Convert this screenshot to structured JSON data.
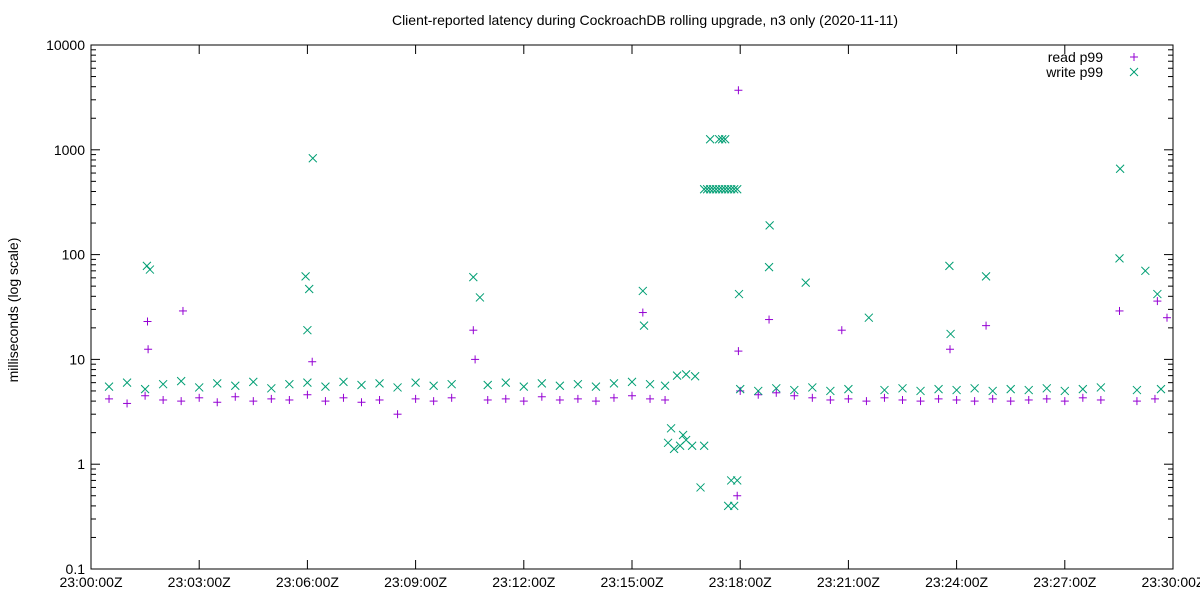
{
  "chart_data": {
    "type": "scatter",
    "title": "Client-reported latency during CockroachDB rolling upgrade, n3 only (2020-11-11)",
    "ylabel": "milliseconds (log scale)",
    "xlabel": "",
    "y_scale": "log",
    "ylim": [
      0.1,
      10000
    ],
    "xlim": [
      "23:00:00Z",
      "23:30:00Z"
    ],
    "y_ticks": [
      "0.1",
      "1",
      "10",
      "100",
      "1000",
      "10000"
    ],
    "x_ticks": [
      "23:00:00Z",
      "23:03:00Z",
      "23:06:00Z",
      "23:09:00Z",
      "23:12:00Z",
      "23:15:00Z",
      "23:18:00Z",
      "23:21:00Z",
      "23:24:00Z",
      "23:27:00Z",
      "23:30:00Z"
    ],
    "grid": false,
    "legend_position": "top-right",
    "colors": {
      "read": "#9400d3",
      "write": "#009e73"
    },
    "series": [
      {
        "name": "read p99",
        "marker": "plus",
        "points": [
          [
            "23:00:30Z",
            4.2
          ],
          [
            "23:01:00Z",
            3.8
          ],
          [
            "23:01:30Z",
            4.5
          ],
          [
            "23:01:34Z",
            23
          ],
          [
            "23:01:35Z",
            12.5
          ],
          [
            "23:02:00Z",
            4.1
          ],
          [
            "23:02:30Z",
            4.0
          ],
          [
            "23:02:33Z",
            29
          ],
          [
            "23:03:00Z",
            4.3
          ],
          [
            "23:03:30Z",
            3.9
          ],
          [
            "23:04:00Z",
            4.4
          ],
          [
            "23:04:30Z",
            4.0
          ],
          [
            "23:05:00Z",
            4.2
          ],
          [
            "23:05:30Z",
            4.1
          ],
          [
            "23:06:00Z",
            4.6
          ],
          [
            "23:06:08Z",
            9.5
          ],
          [
            "23:06:30Z",
            4.0
          ],
          [
            "23:07:00Z",
            4.3
          ],
          [
            "23:07:30Z",
            3.9
          ],
          [
            "23:08:00Z",
            4.1
          ],
          [
            "23:08:30Z",
            3.0
          ],
          [
            "23:09:00Z",
            4.2
          ],
          [
            "23:09:30Z",
            4.0
          ],
          [
            "23:10:00Z",
            4.3
          ],
          [
            "23:10:36Z",
            19
          ],
          [
            "23:10:39Z",
            10
          ],
          [
            "23:11:00Z",
            4.1
          ],
          [
            "23:11:30Z",
            4.2
          ],
          [
            "23:12:00Z",
            4.0
          ],
          [
            "23:12:30Z",
            4.4
          ],
          [
            "23:13:00Z",
            4.1
          ],
          [
            "23:13:30Z",
            4.2
          ],
          [
            "23:14:00Z",
            4.0
          ],
          [
            "23:14:30Z",
            4.3
          ],
          [
            "23:15:00Z",
            4.5
          ],
          [
            "23:15:18Z",
            28
          ],
          [
            "23:15:30Z",
            4.2
          ],
          [
            "23:15:55Z",
            4.1
          ],
          [
            "23:17:57Z",
            3700
          ],
          [
            "23:17:57Z",
            12
          ],
          [
            "23:17:55Z",
            0.5
          ],
          [
            "23:18:00Z",
            5.0
          ],
          [
            "23:18:30Z",
            4.6
          ],
          [
            "23:18:48Z",
            24
          ],
          [
            "23:19:00Z",
            4.8
          ],
          [
            "23:19:30Z",
            4.5
          ],
          [
            "23:20:00Z",
            4.3
          ],
          [
            "23:20:30Z",
            4.1
          ],
          [
            "23:20:49Z",
            19
          ],
          [
            "23:21:00Z",
            4.2
          ],
          [
            "23:21:30Z",
            4.0
          ],
          [
            "23:22:00Z",
            4.3
          ],
          [
            "23:22:30Z",
            4.1
          ],
          [
            "23:23:00Z",
            4.0
          ],
          [
            "23:23:30Z",
            4.2
          ],
          [
            "23:23:49Z",
            12.5
          ],
          [
            "23:24:00Z",
            4.1
          ],
          [
            "23:24:30Z",
            4.0
          ],
          [
            "23:24:49Z",
            21
          ],
          [
            "23:25:00Z",
            4.2
          ],
          [
            "23:25:30Z",
            4.0
          ],
          [
            "23:26:00Z",
            4.1
          ],
          [
            "23:26:30Z",
            4.2
          ],
          [
            "23:27:00Z",
            4.0
          ],
          [
            "23:27:30Z",
            4.3
          ],
          [
            "23:28:00Z",
            4.1
          ],
          [
            "23:28:31Z",
            29
          ],
          [
            "23:29:00Z",
            4.0
          ],
          [
            "23:29:30Z",
            4.2
          ],
          [
            "23:29:34Z",
            36
          ],
          [
            "23:29:50Z",
            25
          ]
        ]
      },
      {
        "name": "write p99",
        "marker": "cross",
        "points": [
          [
            "23:00:30Z",
            5.5
          ],
          [
            "23:01:00Z",
            6.0
          ],
          [
            "23:01:30Z",
            5.2
          ],
          [
            "23:01:33Z",
            78
          ],
          [
            "23:01:38Z",
            72
          ],
          [
            "23:02:00Z",
            5.8
          ],
          [
            "23:02:30Z",
            6.2
          ],
          [
            "23:03:00Z",
            5.4
          ],
          [
            "23:03:30Z",
            5.9
          ],
          [
            "23:04:00Z",
            5.6
          ],
          [
            "23:04:30Z",
            6.1
          ],
          [
            "23:05:00Z",
            5.3
          ],
          [
            "23:05:30Z",
            5.8
          ],
          [
            "23:06:00Z",
            6.0
          ],
          [
            "23:05:57Z",
            62
          ],
          [
            "23:06:03Z",
            47
          ],
          [
            "23:06:09Z",
            830
          ],
          [
            "23:06:00Z",
            19
          ],
          [
            "23:06:30Z",
            5.5
          ],
          [
            "23:07:00Z",
            6.1
          ],
          [
            "23:07:30Z",
            5.7
          ],
          [
            "23:08:00Z",
            5.9
          ],
          [
            "23:08:30Z",
            5.4
          ],
          [
            "23:09:00Z",
            6.0
          ],
          [
            "23:09:30Z",
            5.6
          ],
          [
            "23:10:00Z",
            5.8
          ],
          [
            "23:10:36Z",
            61
          ],
          [
            "23:10:47Z",
            39
          ],
          [
            "23:11:00Z",
            5.7
          ],
          [
            "23:11:30Z",
            6.0
          ],
          [
            "23:12:00Z",
            5.5
          ],
          [
            "23:12:30Z",
            5.9
          ],
          [
            "23:13:00Z",
            5.6
          ],
          [
            "23:13:30Z",
            5.8
          ],
          [
            "23:14:00Z",
            5.5
          ],
          [
            "23:14:30Z",
            5.9
          ],
          [
            "23:15:00Z",
            6.1
          ],
          [
            "23:15:18Z",
            45
          ],
          [
            "23:15:20Z",
            21
          ],
          [
            "23:15:30Z",
            5.8
          ],
          [
            "23:15:55Z",
            5.6
          ],
          [
            "23:16:00Z",
            1.6
          ],
          [
            "23:16:10Z",
            1.4
          ],
          [
            "23:16:20Z",
            1.5
          ],
          [
            "23:16:30Z",
            1.7
          ],
          [
            "23:16:40Z",
            1.5
          ],
          [
            "23:16:05Z",
            2.2
          ],
          [
            "23:16:25Z",
            1.9
          ],
          [
            "23:16:15Z",
            7.0
          ],
          [
            "23:16:30Z",
            7.2
          ],
          [
            "23:16:45Z",
            6.9
          ],
          [
            "23:17:00Z",
            1.5
          ],
          [
            "23:16:54Z",
            0.6
          ],
          [
            "23:17:00Z",
            420
          ],
          [
            "23:17:05Z",
            420
          ],
          [
            "23:17:10Z",
            420
          ],
          [
            "23:17:15Z",
            420
          ],
          [
            "23:17:20Z",
            420
          ],
          [
            "23:17:25Z",
            420
          ],
          [
            "23:17:30Z",
            420
          ],
          [
            "23:17:35Z",
            420
          ],
          [
            "23:17:40Z",
            420
          ],
          [
            "23:17:45Z",
            420
          ],
          [
            "23:17:50Z",
            420
          ],
          [
            "23:17:55Z",
            420
          ],
          [
            "23:17:10Z",
            1260
          ],
          [
            "23:17:25Z",
            1260
          ],
          [
            "23:17:30Z",
            1260
          ],
          [
            "23:17:35Z",
            1260
          ],
          [
            "23:17:40Z",
            0.4
          ],
          [
            "23:17:45Z",
            0.7
          ],
          [
            "23:17:50Z",
            0.4
          ],
          [
            "23:17:55Z",
            0.7
          ],
          [
            "23:17:58Z",
            42
          ],
          [
            "23:18:00Z",
            5.2
          ],
          [
            "23:18:30Z",
            5.0
          ],
          [
            "23:18:49Z",
            190
          ],
          [
            "23:18:48Z",
            76
          ],
          [
            "23:19:00Z",
            5.3
          ],
          [
            "23:19:30Z",
            5.1
          ],
          [
            "23:19:49Z",
            54
          ],
          [
            "23:20:00Z",
            5.4
          ],
          [
            "23:20:30Z",
            5.0
          ],
          [
            "23:21:00Z",
            5.2
          ],
          [
            "23:21:34Z",
            25
          ],
          [
            "23:22:00Z",
            5.1
          ],
          [
            "23:22:30Z",
            5.3
          ],
          [
            "23:23:00Z",
            5.0
          ],
          [
            "23:23:30Z",
            5.2
          ],
          [
            "23:23:48Z",
            78
          ],
          [
            "23:23:50Z",
            17.5
          ],
          [
            "23:24:00Z",
            5.1
          ],
          [
            "23:24:30Z",
            5.3
          ],
          [
            "23:24:49Z",
            62
          ],
          [
            "23:25:00Z",
            5.0
          ],
          [
            "23:25:30Z",
            5.2
          ],
          [
            "23:26:00Z",
            5.1
          ],
          [
            "23:26:30Z",
            5.3
          ],
          [
            "23:27:00Z",
            5.0
          ],
          [
            "23:27:30Z",
            5.2
          ],
          [
            "23:28:00Z",
            5.4
          ],
          [
            "23:28:31Z",
            92
          ],
          [
            "23:28:32Z",
            660
          ],
          [
            "23:29:00Z",
            5.1
          ],
          [
            "23:29:14Z",
            70
          ],
          [
            "23:29:34Z",
            42
          ],
          [
            "23:29:40Z",
            5.2
          ]
        ]
      }
    ]
  }
}
